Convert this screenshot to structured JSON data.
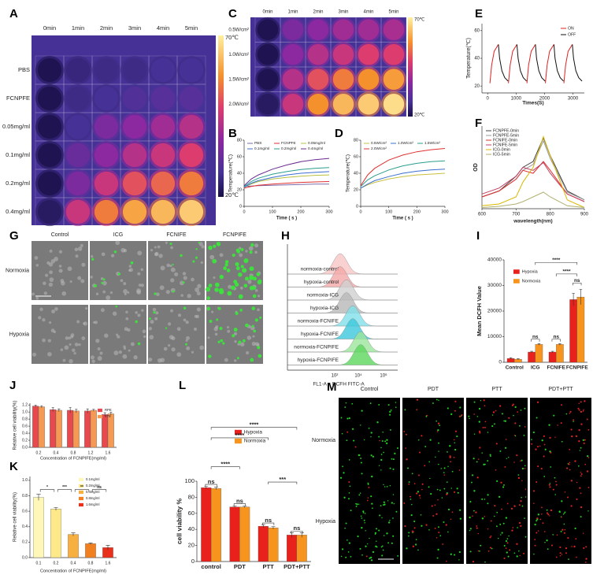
{
  "panels": {
    "A": {
      "label": "A",
      "columns": [
        "0min",
        "1min",
        "2min",
        "3min",
        "4min",
        "5min"
      ],
      "rows": [
        "PBS",
        "FCNPFE",
        "0.05mg/ml",
        "0.1mg/ml",
        "0.2mg/ml",
        "0.4mg/ml"
      ],
      "scale_max": "70℃",
      "scale_min": "20℃"
    },
    "C": {
      "label": "C",
      "columns": [
        "0min",
        "1min",
        "2min",
        "3min",
        "4min",
        "5min"
      ],
      "rows": [
        "0.5W/cm²",
        "1.0W/cm²",
        "1.5W/cm²",
        "2.0W/cm²"
      ],
      "scale_max": "70℃",
      "scale_min": "20℃"
    },
    "G": {
      "label": "G",
      "columns": [
        "Control",
        "ICG",
        "FCNIFE",
        "FCNPIFE"
      ],
      "rows": [
        "Normoxia",
        "Hypoxia"
      ]
    },
    "H": {
      "label": "H",
      "rows": [
        "normoxia-control",
        "hypoxia-control",
        "normoxia-ICG",
        "hypoxia-ICG",
        "normoxia-FCNIFE",
        "hypoxia-FCNIFE",
        "normoxia-FCNPIFE",
        "hypoxia-FCNPIFE"
      ],
      "xticks": [
        "10²",
        "10⁴",
        "10⁶"
      ],
      "xlabel": "FL1-A :: DCFH FITC-A"
    },
    "M": {
      "label": "M",
      "columns": [
        "Control",
        "PDT",
        "PTT",
        "PDT+PTT"
      ],
      "rows": [
        "Normoxia",
        "Hypoxia"
      ]
    }
  },
  "chart_data": [
    {
      "label": "B",
      "type": "line",
      "xlabel": "Time ( s )",
      "ylabel": "Temperature(℃)",
      "x": [
        0,
        25,
        50,
        100,
        150,
        200,
        250,
        300
      ],
      "xlim": [
        0,
        300
      ],
      "xticks": [
        0,
        100,
        200,
        300
      ],
      "ylim": [
        0,
        80
      ],
      "yticks": [
        0,
        20,
        40,
        60,
        80
      ],
      "series": [
        {
          "name": "PBS",
          "color": "#7b6aa8",
          "values": [
            24,
            24.5,
            25,
            25.5,
            26,
            26.5,
            27,
            27
          ]
        },
        {
          "name": "FCNPFE",
          "color": "#e03030",
          "values": [
            22,
            24,
            25.5,
            27,
            28,
            29,
            29.5,
            30
          ]
        },
        {
          "name": "0.05mg/ml",
          "color": "#b8c040",
          "values": [
            23,
            27,
            30,
            33,
            35,
            36.5,
            37.5,
            38
          ]
        },
        {
          "name": "0.1mg/ml",
          "color": "#3a6fd0",
          "values": [
            23,
            28,
            31,
            35,
            38,
            40,
            41,
            42
          ]
        },
        {
          "name": "0.2mg/ml",
          "color": "#2a9d8f",
          "values": [
            24,
            30,
            34,
            39,
            42,
            44.5,
            46,
            47
          ]
        },
        {
          "name": "0.4mg/ml",
          "color": "#6a2c91",
          "values": [
            25,
            33,
            38,
            45,
            50,
            54,
            56.5,
            58
          ]
        }
      ]
    },
    {
      "label": "D",
      "type": "line",
      "xlabel": "Time ( s )",
      "ylabel": "Temperature(℃)",
      "x": [
        0,
        25,
        50,
        100,
        150,
        200,
        250,
        300
      ],
      "xlim": [
        0,
        300
      ],
      "xticks": [
        0,
        100,
        200,
        300
      ],
      "ylim": [
        0,
        80
      ],
      "yticks": [
        0,
        20,
        40,
        60,
        80
      ],
      "series": [
        {
          "name": "0.5W/cm²",
          "color": "#c8c040",
          "values": [
            22,
            26,
            29,
            33,
            36,
            38,
            39,
            40
          ]
        },
        {
          "name": "1.0W/cm²",
          "color": "#3a6fd0",
          "values": [
            22,
            27,
            31,
            36,
            40,
            42.5,
            44,
            45
          ]
        },
        {
          "name": "1.5W/cm²",
          "color": "#2a9d8f",
          "values": [
            24,
            32,
            37,
            44,
            49,
            52,
            54,
            55
          ]
        },
        {
          "name": "2.0W/cm²",
          "color": "#e03030",
          "values": [
            25,
            38,
            46,
            56,
            62,
            66,
            68.5,
            70
          ]
        }
      ]
    },
    {
      "label": "E",
      "type": "line",
      "xlabel": "Times(S)",
      "ylabel": "Temperature(℃)",
      "xlim": [
        -200,
        3400
      ],
      "xticks": [
        0,
        1000,
        2000,
        3000
      ],
      "ylim": [
        15,
        65
      ],
      "yticks": [
        20,
        40,
        60
      ],
      "series": [
        {
          "name": "ON",
          "color": "#e02020",
          "x": [
            80,
            140,
            230,
            380,
            null,
            730,
            790,
            880,
            1030,
            null,
            1380,
            1440,
            1530,
            1680,
            null,
            2030,
            2090,
            2180,
            2330,
            null,
            2680,
            2740,
            2830,
            2980
          ],
          "values": [
            22,
            35,
            45,
            50,
            null,
            22,
            35,
            45,
            50,
            null,
            22,
            35,
            45,
            50,
            null,
            22,
            35,
            45,
            50,
            null,
            22,
            35,
            45,
            50
          ]
        },
        {
          "name": "OFF",
          "color": "#111111",
          "x": [
            380,
            420,
            500,
            600,
            720,
            null,
            1030,
            1070,
            1150,
            1250,
            1370,
            null,
            1680,
            1720,
            1800,
            1900,
            2020,
            null,
            2330,
            2370,
            2450,
            2550,
            2670,
            null,
            2980,
            3020,
            3100,
            3200,
            3320
          ],
          "values": [
            50,
            40,
            31,
            26,
            23.5,
            null,
            50,
            40,
            31,
            26,
            23.5,
            null,
            50,
            40,
            31,
            26,
            23.5,
            null,
            50,
            40,
            31,
            26,
            23.5,
            null,
            50,
            40,
            31,
            26,
            23.5
          ]
        }
      ]
    },
    {
      "label": "F",
      "type": "line",
      "xlabel": "wavelength(nm)",
      "ylabel": "OD",
      "x": [
        600,
        650,
        700,
        720,
        750,
        780,
        800,
        850,
        900
      ],
      "xlim": [
        600,
        900
      ],
      "xticks": [
        600,
        700,
        800,
        900
      ],
      "ylim": [
        0,
        1.4
      ],
      "series": [
        {
          "name": "FCNPFE-0min",
          "color": "#444444",
          "values": [
            0.2,
            0.3,
            0.55,
            0.7,
            0.8,
            1.2,
            0.9,
            0.3,
            0.15
          ]
        },
        {
          "name": "FCNPFE-5min",
          "color": "#999999",
          "values": [
            0.2,
            0.3,
            0.5,
            0.65,
            0.75,
            1.15,
            0.85,
            0.28,
            0.15
          ]
        },
        {
          "name": "FCNIFE-0min",
          "color": "#e03030",
          "values": [
            0.2,
            0.3,
            0.5,
            0.65,
            0.6,
            0.8,
            0.65,
            0.25,
            0.12
          ]
        },
        {
          "name": "FCNIFE-5min",
          "color": "#c04060",
          "values": [
            0.25,
            0.35,
            0.55,
            0.7,
            0.65,
            0.78,
            0.6,
            0.25,
            0.12
          ]
        },
        {
          "name": "ICG-0min",
          "color": "#d8b800",
          "values": [
            0.05,
            0.08,
            0.2,
            0.45,
            0.7,
            1.22,
            0.9,
            0.15,
            0.02
          ]
        },
        {
          "name": "ICG-5min",
          "color": "#b0b070",
          "values": [
            0.02,
            0.04,
            0.08,
            0.12,
            0.2,
            0.28,
            0.2,
            0.05,
            0.02
          ]
        }
      ]
    },
    {
      "label": "I",
      "type": "bar",
      "ylabel": "Mean DCFH Value",
      "categories": [
        "Control",
        "ICG",
        "FCNIFE",
        "FCNPIFE"
      ],
      "ylim": [
        0,
        40000
      ],
      "yticks": [
        0,
        10000,
        20000,
        30000,
        40000
      ],
      "series": [
        {
          "name": "Hypoxia",
          "color": "#e8211c",
          "values": [
            1500,
            4000,
            4000,
            24500
          ],
          "errors": [
            300,
            300,
            300,
            2500
          ]
        },
        {
          "name": "Normoxia",
          "color": "#f7941d",
          "values": [
            1200,
            7000,
            7000,
            25500
          ],
          "errors": [
            200,
            300,
            300,
            3000
          ]
        }
      ],
      "annotations": [
        "ns",
        "ns",
        "ns",
        "****",
        "****"
      ]
    },
    {
      "label": "J",
      "type": "bar",
      "xlabel": "Concentration of FCNPIFE(mg/ml)",
      "ylabel": "Relative cell viability(%)",
      "categories": [
        "0.2",
        "0.4",
        "0.8",
        "1.2",
        "1.6"
      ],
      "ylim": [
        0,
        1.25
      ],
      "yticks": [
        {
          "value": 0,
          "label": "0.0"
        },
        0.2,
        0.4,
        0.6,
        0.8,
        {
          "value": 1,
          "label": "1.0"
        },
        1.2
      ],
      "series": [
        {
          "name": "RPE",
          "color": "#e64a4f",
          "values": [
            1.17,
            1.07,
            1.05,
            1.03,
            0.93
          ],
          "errors": [
            0.03,
            0.06,
            0.08,
            0.06,
            0.05
          ]
        },
        {
          "name": "Y79",
          "color": "#f49a55",
          "values": [
            1.15,
            1.05,
            1.03,
            1.05,
            0.95
          ],
          "errors": [
            0.03,
            0.04,
            0.05,
            0.03,
            0.04
          ]
        }
      ]
    },
    {
      "label": "K",
      "type": "bar",
      "xlabel": "Concentration of FCNPIFE(mg/ml)",
      "ylabel": "Relative cell viability(%)",
      "categories": [
        "0.1",
        "0.2",
        "0.4",
        "0.8",
        "1.6"
      ],
      "ylim": [
        0,
        1.05
      ],
      "yticks": [
        {
          "value": 0,
          "label": "0.0"
        },
        0.2,
        0.4,
        0.6,
        0.8,
        {
          "value": 1,
          "label": "1.0"
        }
      ],
      "values": [
        0.78,
        0.63,
        0.3,
        0.18,
        0.13
      ],
      "errors": [
        0.04,
        0.02,
        0.02,
        0.01,
        0.03
      ],
      "colors": [
        "#fff7b8",
        "#fde98a",
        "#f7b040",
        "#f08020",
        "#e8301c"
      ],
      "legend": [
        "0.1mg/ml",
        "0.2mg/ml",
        "0.4mg/ml",
        "0.8mg/ml",
        "1.6mg/ml"
      ],
      "annotations": [
        "*",
        "***",
        "**",
        "ns"
      ]
    },
    {
      "label": "L",
      "type": "bar",
      "ylabel": "cell viability %",
      "categories": [
        "control",
        "PDT",
        "PTT",
        "PDT+PTT"
      ],
      "ylim": [
        0,
        100
      ],
      "yticks": [
        0,
        20,
        40,
        60,
        80,
        100
      ],
      "series": [
        {
          "name": "Hypoxia",
          "color": "#e8211c",
          "values": [
            92,
            68,
            44,
            33
          ],
          "errors": [
            1.5,
            1,
            2,
            3
          ]
        },
        {
          "name": "Normoxia",
          "color": "#f7941d",
          "values": [
            91,
            68,
            42,
            33
          ],
          "errors": [
            1.5,
            1,
            1.5,
            3
          ]
        }
      ],
      "annotations": [
        "ns",
        "ns",
        "ns",
        "ns",
        "****",
        "****",
        "****",
        "***"
      ]
    }
  ]
}
